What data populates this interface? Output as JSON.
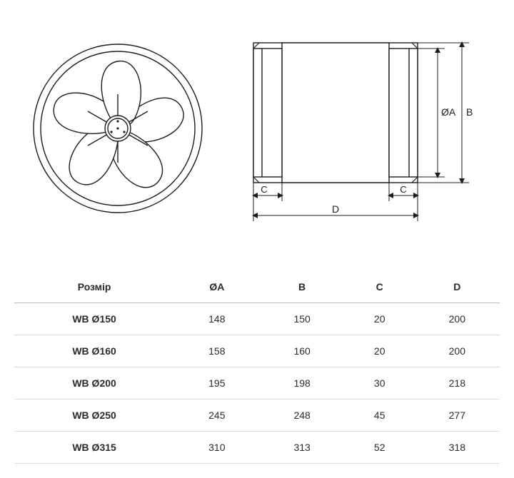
{
  "diagram": {
    "front_view": "fan",
    "side_view": "cylinder",
    "labels": {
      "oa": "ØA",
      "b": "B",
      "c": "C",
      "d": "D"
    },
    "stroke": "#1d1d1d",
    "stroke_width": 1.4,
    "fill": "#ffffff"
  },
  "table": {
    "columns": [
      "Розмір",
      "ØA",
      "B",
      "C",
      "D"
    ],
    "rows": [
      [
        "WB Ø150",
        "148",
        "150",
        "20",
        "200"
      ],
      [
        "WB Ø160",
        "158",
        "160",
        "20",
        "200"
      ],
      [
        "WB Ø200",
        "195",
        "198",
        "30",
        "218"
      ],
      [
        "WB Ø250",
        "245",
        "248",
        "45",
        "277"
      ],
      [
        "WB Ø315",
        "310",
        "313",
        "52",
        "318"
      ]
    ],
    "header_fontsize": 14,
    "cell_fontsize": 14,
    "border_color": "#dcdcdc",
    "header_border_color": "#bcbcbc",
    "text_color": "#2b2b2b"
  }
}
